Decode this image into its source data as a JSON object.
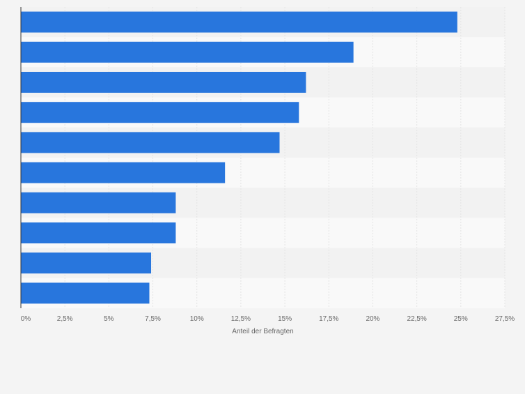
{
  "chart_data": {
    "type": "bar",
    "orientation": "horizontal",
    "categories": [
      "",
      "",
      "",
      "",
      "",
      "",
      "",
      "",
      "",
      ""
    ],
    "values": [
      24.8,
      18.9,
      16.2,
      15.8,
      14.7,
      11.6,
      8.8,
      8.8,
      7.4,
      7.3
    ],
    "title": "",
    "xlabel": "Anteil der Befragten",
    "ylabel": "",
    "xlim": [
      0,
      27.5
    ],
    "x_ticks": [
      0,
      2.5,
      5,
      7.5,
      10,
      12.5,
      15,
      17.5,
      20,
      22.5,
      25,
      27.5
    ],
    "x_tick_labels": [
      "0%",
      "2,5%",
      "5%",
      "7,5%",
      "10%",
      "12,5%",
      "15%",
      "17,5%",
      "20%",
      "22,5%",
      "25%",
      "27,5%"
    ],
    "grid": true,
    "legend": "none",
    "colors": {
      "bar": "#2876dd",
      "page_background": "#f4f4f4",
      "plot_band_light": "#f9f9f9",
      "plot_band_dark": "#f2f2f2",
      "gridline": "#e4e4e4",
      "axis": "#333333",
      "tick_text": "#666666"
    }
  }
}
